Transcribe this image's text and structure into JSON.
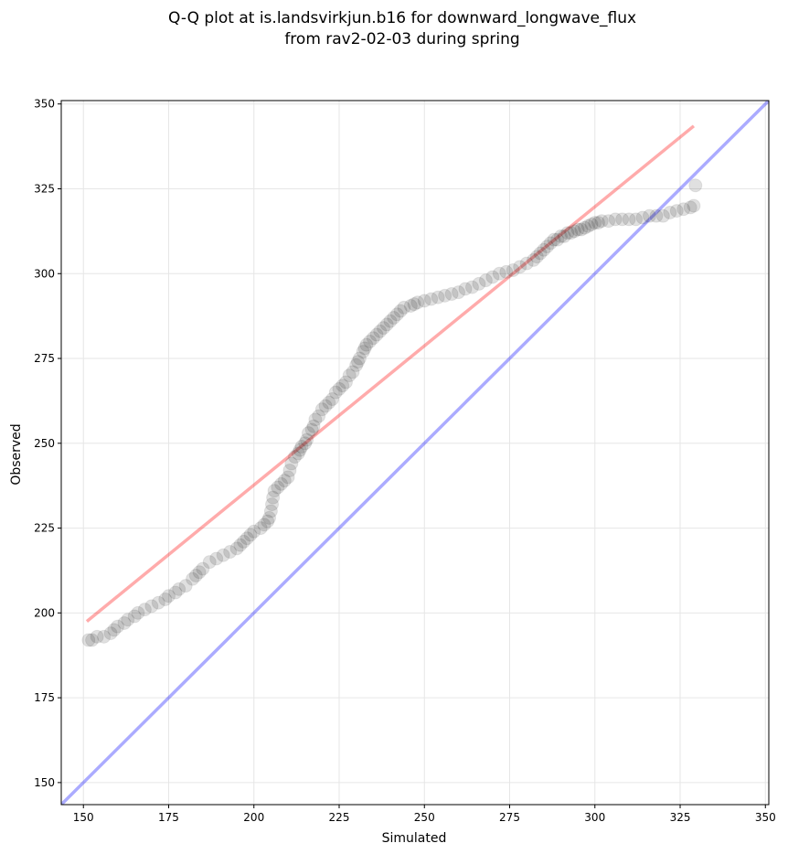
{
  "chart_data": {
    "type": "scatter",
    "title": "Q-Q plot at is.landsvirkjun.b16 for downward_longwave_flux",
    "subtitle": "from rav2-02-03 during spring",
    "xlabel": "Simulated",
    "ylabel": "Observed",
    "xlim": [
      143.5,
      351
    ],
    "ylim": [
      143.5,
      351
    ],
    "xticks": [
      150,
      175,
      200,
      225,
      250,
      275,
      300,
      325,
      350
    ],
    "yticks": [
      150,
      175,
      200,
      225,
      250,
      275,
      300,
      325,
      350
    ],
    "grid": true,
    "legend": "none",
    "reference_line": {
      "x": [
        143.5,
        351
      ],
      "y": [
        143.5,
        351
      ],
      "color": "#0000ff"
    },
    "fit_line": {
      "x": [
        151,
        329
      ],
      "y": [
        197.5,
        343.5
      ],
      "color": "#ff0000"
    },
    "points_color": "#000000",
    "points": [
      [
        151.5,
        192
      ],
      [
        152.5,
        192
      ],
      [
        154,
        193
      ],
      [
        156,
        193
      ],
      [
        158,
        194
      ],
      [
        159,
        195
      ],
      [
        160,
        196
      ],
      [
        162,
        197
      ],
      [
        163,
        198
      ],
      [
        165,
        199
      ],
      [
        166,
        200
      ],
      [
        168,
        201
      ],
      [
        170,
        202
      ],
      [
        172,
        203
      ],
      [
        174,
        204
      ],
      [
        175,
        205
      ],
      [
        177,
        206
      ],
      [
        178,
        207
      ],
      [
        180,
        208
      ],
      [
        182,
        210
      ],
      [
        183,
        211
      ],
      [
        184,
        212
      ],
      [
        185,
        213
      ],
      [
        187,
        215
      ],
      [
        189,
        216
      ],
      [
        191,
        217
      ],
      [
        193,
        218
      ],
      [
        195,
        219
      ],
      [
        196,
        220
      ],
      [
        197,
        221
      ],
      [
        198,
        222
      ],
      [
        199,
        223
      ],
      [
        200,
        224
      ],
      [
        202,
        225
      ],
      [
        203,
        226
      ],
      [
        204,
        227
      ],
      [
        204.5,
        228
      ],
      [
        205,
        230
      ],
      [
        205.3,
        232
      ],
      [
        205.6,
        234
      ],
      [
        206,
        236
      ],
      [
        207,
        237
      ],
      [
        208,
        238
      ],
      [
        209,
        239
      ],
      [
        210,
        240
      ],
      [
        210.5,
        242
      ],
      [
        211,
        244
      ],
      [
        212,
        246
      ],
      [
        213,
        247
      ],
      [
        213.5,
        248
      ],
      [
        214,
        249
      ],
      [
        215,
        250
      ],
      [
        215.5,
        251
      ],
      [
        216,
        253
      ],
      [
        217,
        254
      ],
      [
        217.5,
        255
      ],
      [
        218,
        257
      ],
      [
        219,
        258
      ],
      [
        220,
        260
      ],
      [
        221,
        261
      ],
      [
        222,
        262
      ],
      [
        223,
        263
      ],
      [
        224,
        265
      ],
      [
        225,
        266
      ],
      [
        226,
        267
      ],
      [
        227,
        268
      ],
      [
        228,
        270
      ],
      [
        229,
        271
      ],
      [
        230,
        273
      ],
      [
        230.5,
        274
      ],
      [
        231,
        275
      ],
      [
        232,
        277
      ],
      [
        232.5,
        278
      ],
      [
        233,
        279
      ],
      [
        234,
        280
      ],
      [
        235,
        281
      ],
      [
        236,
        282
      ],
      [
        237,
        283
      ],
      [
        238,
        284
      ],
      [
        239,
        285
      ],
      [
        240,
        286
      ],
      [
        241,
        287
      ],
      [
        242,
        288
      ],
      [
        243,
        289
      ],
      [
        244,
        290
      ],
      [
        246,
        290.5
      ],
      [
        247,
        291
      ],
      [
        248,
        291.5
      ],
      [
        250,
        292
      ],
      [
        252,
        292.5
      ],
      [
        254,
        293
      ],
      [
        256,
        293.5
      ],
      [
        258,
        294
      ],
      [
        260,
        294.5
      ],
      [
        262,
        295.5
      ],
      [
        264,
        296
      ],
      [
        266,
        297
      ],
      [
        268,
        298
      ],
      [
        270,
        299
      ],
      [
        272,
        300
      ],
      [
        274,
        300.5
      ],
      [
        276,
        301
      ],
      [
        278,
        302
      ],
      [
        280,
        303
      ],
      [
        282,
        304
      ],
      [
        283,
        305
      ],
      [
        284,
        306
      ],
      [
        285,
        307
      ],
      [
        286,
        308
      ],
      [
        287,
        309
      ],
      [
        288,
        310
      ],
      [
        289,
        310
      ],
      [
        290,
        311
      ],
      [
        291,
        311
      ],
      [
        292,
        312
      ],
      [
        293,
        312
      ],
      [
        294,
        312.5
      ],
      [
        295,
        313
      ],
      [
        296,
        313
      ],
      [
        297,
        313.5
      ],
      [
        298,
        314
      ],
      [
        299,
        314.5
      ],
      [
        300,
        315
      ],
      [
        301,
        315
      ],
      [
        302,
        315.5
      ],
      [
        304,
        315.5
      ],
      [
        306,
        316
      ],
      [
        308,
        316
      ],
      [
        310,
        316
      ],
      [
        312,
        316
      ],
      [
        314,
        316.5
      ],
      [
        316,
        317
      ],
      [
        318,
        317
      ],
      [
        320,
        317
      ],
      [
        322,
        318
      ],
      [
        324,
        318.5
      ],
      [
        326,
        319
      ],
      [
        328,
        319.5
      ],
      [
        329,
        320
      ],
      [
        329.5,
        326
      ]
    ]
  }
}
